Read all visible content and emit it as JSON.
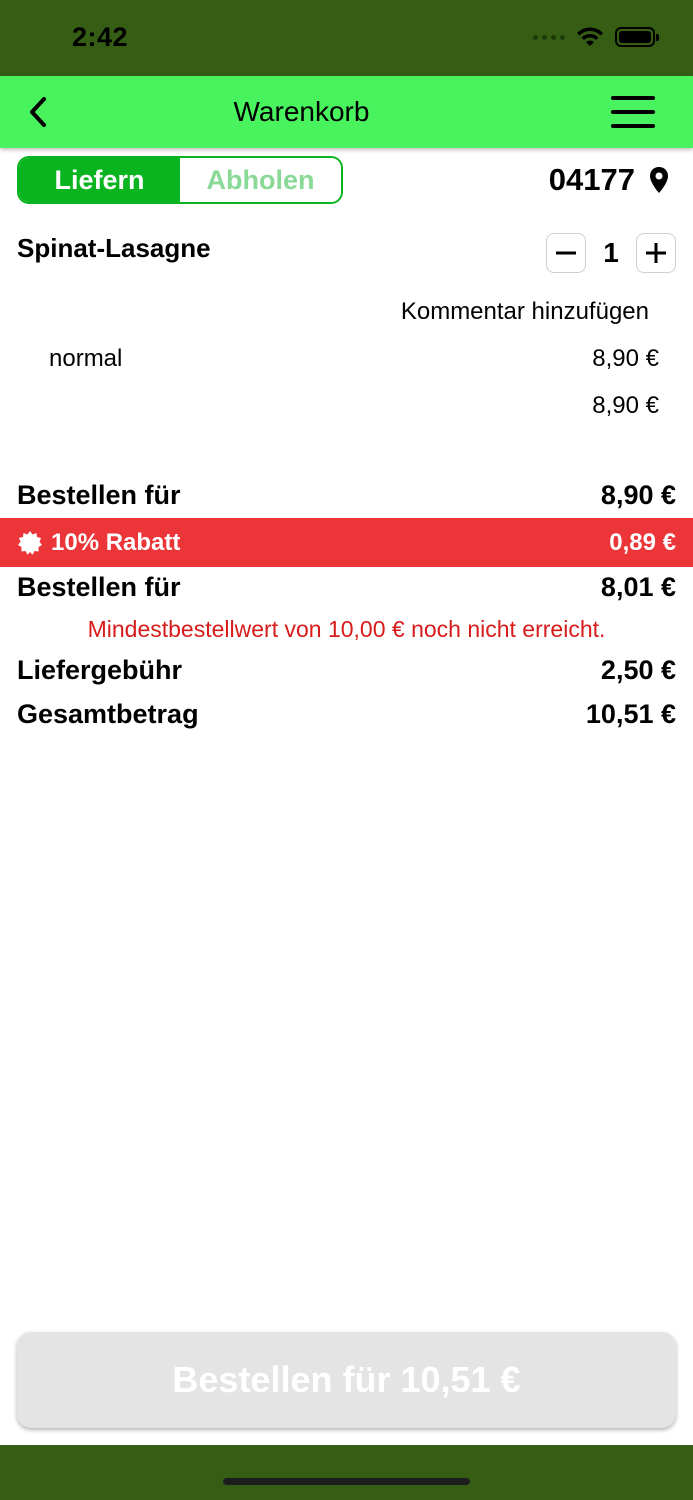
{
  "status_bar": {
    "time": "2:42",
    "icons": [
      "signal-icon",
      "wifi-icon",
      "battery-icon"
    ]
  },
  "nav": {
    "back_icon": "chevron-left-icon",
    "title": "Warenkorb",
    "menu_icon": "hamburger-menu-icon"
  },
  "delivery_mode": {
    "options": [
      "Liefern",
      "Abholen"
    ],
    "selected": "Liefern"
  },
  "location": {
    "zip": "04177",
    "icon": "location-pin-icon"
  },
  "cart_item": {
    "name": "Spinat-Lasagne",
    "quantity": "1",
    "comment_link": "Kommentar hinzufügen",
    "option_name": "normal",
    "option_price": "8,90 €",
    "item_total": "8,90 €"
  },
  "summary": {
    "subtotal_label": "Bestellen für",
    "subtotal_value": "8,90 €",
    "discount_label": "10% Rabatt",
    "discount_value": "0,89 €",
    "discounted_label": "Bestellen für",
    "discounted_value": "8,01 €",
    "min_order_warning": "Mindestbestellwert von 10,00 € noch nicht erreicht.",
    "delivery_fee_label": "Liefergebühr",
    "delivery_fee_value": "2,50 €",
    "total_label": "Gesamtbetrag",
    "total_value": "10,51 €"
  },
  "order_button": {
    "label": "Bestellen für 10,51 €"
  },
  "colors": {
    "status_bar_bg": "#355e14",
    "nav_bg": "#49f35e",
    "accent_green": "#09b41f",
    "discount_red": "#eb3538",
    "warning_red": "#d81b1b",
    "button_disabled_bg": "#e4e4e4"
  }
}
